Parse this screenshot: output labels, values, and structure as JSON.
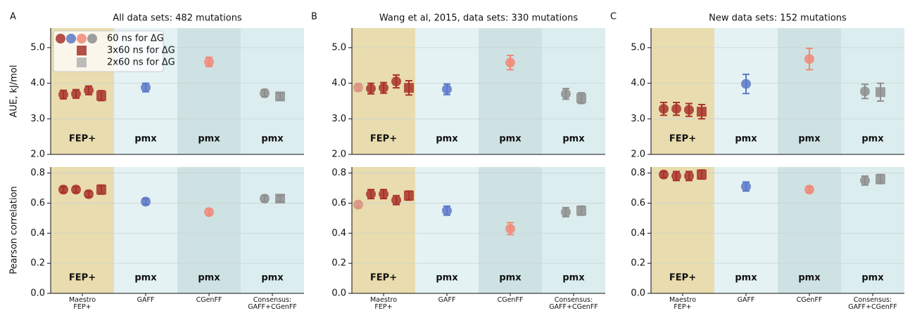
{
  "chart_data": [
    {
      "type": "errorbar",
      "panel": "A",
      "title": "All data sets: 482 mutations",
      "ylabel": "AUE, kJ/mol",
      "ylim": [
        2.0,
        5.55
      ],
      "yticks": [
        {
          "value": 2.0,
          "label": "2.0"
        },
        {
          "value": 3.0,
          "label": "3.0"
        },
        {
          "value": 4.0,
          "label": "4.0"
        },
        {
          "value": 5.0,
          "label": "5.0"
        }
      ],
      "grid": true,
      "region_labels": [
        "FEP+",
        "pmx",
        "pmx",
        "pmx"
      ],
      "region_colors": [
        "#e9dcae",
        "#e4f2f4",
        "#cfe2e3",
        "#dcedef"
      ],
      "legend": [
        {
          "label": "60 ns for ΔG",
          "marker": "circle",
          "colors": [
            "#a8322a",
            "#5a78c8",
            "#f08878",
            "#8e8e8e"
          ]
        },
        {
          "label": "3x60 ns for ΔG",
          "marker": "square",
          "colors": [
            "#a8322a"
          ]
        },
        {
          "label": "2x60 ns for ΔG",
          "marker": "square",
          "colors": [
            "#b0b0b0"
          ]
        }
      ],
      "points": [
        [
          {
            "value": 3.68,
            "error": 0.12,
            "marker": "circle",
            "color": "#a8322a"
          },
          {
            "value": 3.7,
            "error": 0.12,
            "marker": "circle",
            "color": "#a8322a"
          },
          {
            "value": 3.8,
            "error": 0.12,
            "marker": "circle",
            "color": "#a8322a"
          },
          {
            "value": 3.65,
            "error": 0.14,
            "marker": "square",
            "color": "#a8322a"
          }
        ],
        [
          {
            "value": 3.88,
            "error": 0.12,
            "marker": "circle",
            "color": "#5a78c8"
          }
        ],
        [
          {
            "value": 4.6,
            "error": 0.13,
            "marker": "circle",
            "color": "#f08878"
          }
        ],
        [
          {
            "value": 3.72,
            "error": 0.1,
            "marker": "circle",
            "color": "#8e8e8e"
          },
          {
            "value": 3.63,
            "error": 0.1,
            "marker": "square",
            "color": "#8e8e8e"
          }
        ]
      ]
    },
    {
      "type": "errorbar",
      "ylabel": "Pearson correlation",
      "ylim": [
        0,
        0.84
      ],
      "yticks": [
        {
          "value": 0,
          "label": "0.0"
        },
        0.2,
        0.4,
        0.6,
        0.8
      ],
      "grid": true,
      "categories": [
        "Maestro\nFEP+",
        "GAFF",
        "CGenFF",
        "Consensus:\nGAFF+CGenFF"
      ],
      "region_labels": [
        "FEP+",
        "pmx",
        "pmx",
        "pmx"
      ],
      "region_colors": [
        "#e9dcae",
        "#e4f2f4",
        "#cfe2e3",
        "#dcedef"
      ],
      "points": [
        [
          {
            "value": 0.69,
            "error": 0.02,
            "marker": "circle",
            "color": "#a8322a"
          },
          {
            "value": 0.69,
            "error": 0.02,
            "marker": "circle",
            "color": "#a8322a"
          },
          {
            "value": 0.66,
            "error": 0.02,
            "marker": "circle",
            "color": "#a8322a"
          },
          {
            "value": 0.69,
            "error": 0.03,
            "marker": "square",
            "color": "#a8322a"
          }
        ],
        [
          {
            "value": 0.61,
            "error": 0.02,
            "marker": "circle",
            "color": "#5a78c8"
          }
        ],
        [
          {
            "value": 0.54,
            "error": 0.02,
            "marker": "circle",
            "color": "#f08878"
          }
        ],
        [
          {
            "value": 0.63,
            "error": 0.02,
            "marker": "circle",
            "color": "#8e8e8e"
          },
          {
            "value": 0.63,
            "error": 0.02,
            "marker": "square",
            "color": "#8e8e8e"
          }
        ]
      ]
    },
    {
      "type": "errorbar",
      "panel": "B",
      "title": "Wang et al, 2015, data sets: 330 mutations",
      "ylim": [
        2.0,
        5.55
      ],
      "yticks": [
        {
          "value": 2.0,
          "label": "2.0"
        },
        {
          "value": 3.0,
          "label": "3.0"
        },
        {
          "value": 4.0,
          "label": "4.0"
        },
        {
          "value": 5.0,
          "label": "5.0"
        }
      ],
      "grid": true,
      "region_labels": [
        "FEP+",
        "pmx",
        "pmx",
        "pmx"
      ],
      "region_colors": [
        "#e9dcae",
        "#e4f2f4",
        "#cfe2e3",
        "#dcedef"
      ],
      "points": [
        [
          {
            "value": 3.88,
            "error": 0.1,
            "marker": "circle",
            "color": "#d9917f"
          },
          {
            "value": 3.85,
            "error": 0.15,
            "marker": "circle",
            "color": "#a8322a"
          },
          {
            "value": 3.87,
            "error": 0.15,
            "marker": "circle",
            "color": "#a8322a"
          },
          {
            "value": 4.05,
            "error": 0.18,
            "marker": "circle",
            "color": "#a8322a"
          },
          {
            "value": 3.87,
            "error": 0.2,
            "marker": "square",
            "color": "#a8322a"
          }
        ],
        [
          {
            "value": 3.83,
            "error": 0.15,
            "marker": "circle",
            "color": "#5a78c8"
          }
        ],
        [
          {
            "value": 4.58,
            "error": 0.2,
            "marker": "circle",
            "color": "#f08878"
          }
        ],
        [
          {
            "value": 3.7,
            "error": 0.15,
            "marker": "circle",
            "color": "#8e8e8e"
          },
          {
            "value": 3.58,
            "error": 0.15,
            "marker": "square",
            "color": "#8e8e8e"
          }
        ]
      ]
    },
    {
      "type": "errorbar",
      "ylim": [
        0,
        0.84
      ],
      "yticks": [
        {
          "value": 0,
          "label": "0.0"
        },
        0.2,
        0.4,
        0.6,
        0.8
      ],
      "grid": true,
      "categories": [
        "Maestro\nFEP+",
        "GAFF",
        "CGenFF",
        "Consensus:\nGAFF+CGenFF"
      ],
      "region_labels": [
        "FEP+",
        "pmx",
        "pmx",
        "pmx"
      ],
      "region_colors": [
        "#e9dcae",
        "#e4f2f4",
        "#cfe2e3",
        "#dcedef"
      ],
      "points": [
        [
          {
            "value": 0.59,
            "error": 0.02,
            "marker": "circle",
            "color": "#d9917f"
          },
          {
            "value": 0.66,
            "error": 0.03,
            "marker": "circle",
            "color": "#a8322a"
          },
          {
            "value": 0.66,
            "error": 0.03,
            "marker": "circle",
            "color": "#a8322a"
          },
          {
            "value": 0.62,
            "error": 0.03,
            "marker": "circle",
            "color": "#a8322a"
          },
          {
            "value": 0.65,
            "error": 0.03,
            "marker": "square",
            "color": "#a8322a"
          }
        ],
        [
          {
            "value": 0.55,
            "error": 0.03,
            "marker": "circle",
            "color": "#5a78c8"
          }
        ],
        [
          {
            "value": 0.43,
            "error": 0.04,
            "marker": "circle",
            "color": "#f08878"
          }
        ],
        [
          {
            "value": 0.54,
            "error": 0.03,
            "marker": "circle",
            "color": "#8e8e8e"
          },
          {
            "value": 0.55,
            "error": 0.03,
            "marker": "square",
            "color": "#8e8e8e"
          }
        ]
      ]
    },
    {
      "type": "errorbar",
      "panel": "C",
      "title": "New data sets: 152 mutations",
      "ylim": [
        2.0,
        5.55
      ],
      "yticks": [
        {
          "value": 2.0,
          "label": "2.0"
        },
        {
          "value": 3.0,
          "label": "3.0"
        },
        {
          "value": 4.0,
          "label": "4.0"
        },
        {
          "value": 5.0,
          "label": "5.0"
        }
      ],
      "grid": true,
      "region_labels": [
        "FEP+",
        "pmx",
        "pmx",
        "pmx"
      ],
      "region_colors": [
        "#e9dcae",
        "#e4f2f4",
        "#cfe2e3",
        "#dcedef"
      ],
      "points": [
        [
          {
            "value": 3.28,
            "error": 0.18,
            "marker": "circle",
            "color": "#a8322a"
          },
          {
            "value": 3.28,
            "error": 0.18,
            "marker": "circle",
            "color": "#a8322a"
          },
          {
            "value": 3.25,
            "error": 0.18,
            "marker": "circle",
            "color": "#a8322a"
          },
          {
            "value": 3.2,
            "error": 0.2,
            "marker": "square",
            "color": "#a8322a"
          }
        ],
        [
          {
            "value": 3.98,
            "error": 0.27,
            "marker": "circle",
            "color": "#5a78c8"
          }
        ],
        [
          {
            "value": 4.68,
            "error": 0.3,
            "marker": "circle",
            "color": "#f08878"
          }
        ],
        [
          {
            "value": 3.77,
            "error": 0.2,
            "marker": "circle",
            "color": "#8e8e8e"
          },
          {
            "value": 3.75,
            "error": 0.25,
            "marker": "square",
            "color": "#8e8e8e"
          }
        ]
      ]
    },
    {
      "type": "errorbar",
      "ylim": [
        0,
        0.84
      ],
      "yticks": [
        {
          "value": 0,
          "label": "0.0"
        },
        0.2,
        0.4,
        0.6,
        0.8
      ],
      "grid": true,
      "categories": [
        "Maestro\nFEP+",
        "GAFF",
        "CGenFF",
        "Consensus:\nGAFF+CGenFF"
      ],
      "region_labels": [
        "FEP+",
        "pmx",
        "pmx",
        "pmx"
      ],
      "region_colors": [
        "#e9dcae",
        "#e4f2f4",
        "#cfe2e3",
        "#dcedef"
      ],
      "points": [
        [
          {
            "value": 0.79,
            "error": 0.02,
            "marker": "circle",
            "color": "#a8322a"
          },
          {
            "value": 0.78,
            "error": 0.03,
            "marker": "circle",
            "color": "#a8322a"
          },
          {
            "value": 0.78,
            "error": 0.03,
            "marker": "circle",
            "color": "#a8322a"
          },
          {
            "value": 0.79,
            "error": 0.03,
            "marker": "square",
            "color": "#a8322a"
          }
        ],
        [
          {
            "value": 0.71,
            "error": 0.03,
            "marker": "circle",
            "color": "#5a78c8"
          }
        ],
        [
          {
            "value": 0.69,
            "error": 0.02,
            "marker": "circle",
            "color": "#f08878"
          }
        ],
        [
          {
            "value": 0.75,
            "error": 0.03,
            "marker": "circle",
            "color": "#8e8e8e"
          },
          {
            "value": 0.76,
            "error": 0.03,
            "marker": "square",
            "color": "#8e8e8e"
          }
        ]
      ]
    }
  ]
}
